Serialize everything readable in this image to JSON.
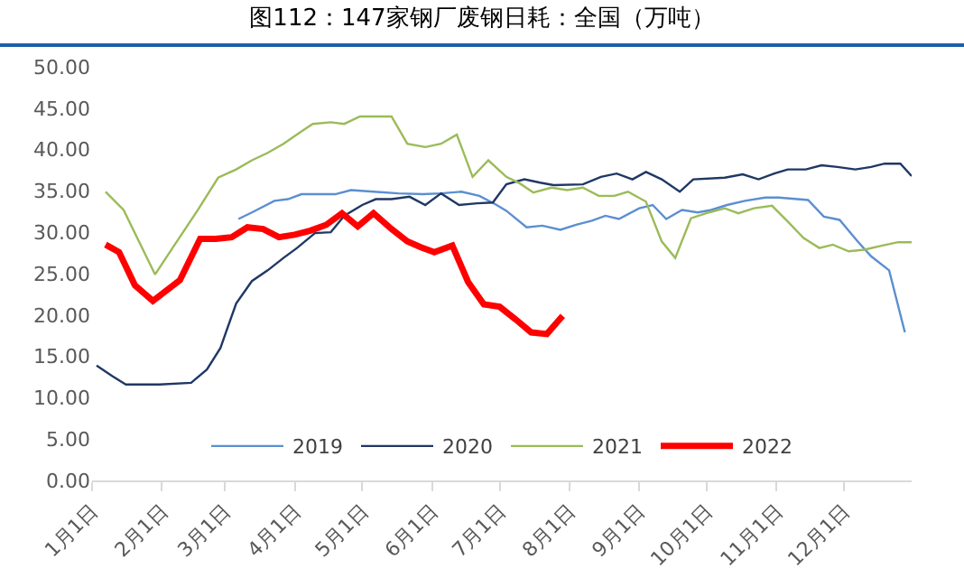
{
  "chart_data": {
    "type": "line",
    "title": "图112：147家钢厂废钢日耗：全国（万吨）",
    "xlim": [
      "--01-01",
      "--12-31"
    ],
    "xticks": [
      {
        "value": "--01-01",
        "label": "1月1日"
      },
      {
        "value": "--02-01",
        "label": "2月1日"
      },
      {
        "value": "--03-01",
        "label": "3月1日"
      },
      {
        "value": "--04-01",
        "label": "4月1日"
      },
      {
        "value": "--05-01",
        "label": "5月1日"
      },
      {
        "value": "--06-01",
        "label": "6月1日"
      },
      {
        "value": "--07-01",
        "label": "7月1日"
      },
      {
        "value": "--08-01",
        "label": "8月1日"
      },
      {
        "value": "--09-01",
        "label": "9月1日"
      },
      {
        "value": "--10-01",
        "label": "10月1日"
      },
      {
        "value": "--11-01",
        "label": "11月1日"
      },
      {
        "value": "--12-01",
        "label": "12月1日"
      }
    ],
    "ylim": [
      0,
      50
    ],
    "yticks": [
      {
        "value": 0,
        "label": "0.00"
      },
      {
        "value": 5,
        "label": "5.00"
      },
      {
        "value": 10,
        "label": "10.00"
      },
      {
        "value": 15,
        "label": "15.00"
      },
      {
        "value": 20,
        "label": "20.00"
      },
      {
        "value": 25,
        "label": "25.00"
      },
      {
        "value": 30,
        "label": "30.00"
      },
      {
        "value": 35,
        "label": "35.00"
      },
      {
        "value": 40,
        "label": "40.00"
      },
      {
        "value": 45,
        "label": "45.00"
      },
      {
        "value": 50,
        "label": "50.00"
      }
    ],
    "grid": false,
    "legend": "bottom",
    "marker": "none",
    "line_style": "solid",
    "series": [
      {
        "name": "2019",
        "color": "#5b8fd1",
        "x": [
          "--03-07",
          "--03-13",
          "--03-23",
          "--03-29",
          "--04-04",
          "--04-19",
          "--04-26",
          "--05-06",
          "--05-17",
          "--05-28",
          "--06-05",
          "--06-14",
          "--06-22",
          "--06-29",
          "--07-04",
          "--07-13",
          "--07-20",
          "--07-28",
          "--08-04",
          "--08-11",
          "--08-17",
          "--08-23",
          "--09-01",
          "--09-07",
          "--09-13",
          "--09-20",
          "--09-27",
          "--10-03",
          "--10-10",
          "--10-18",
          "--10-27",
          "--11-02",
          "--11-15",
          "--11-22",
          "--11-29",
          "--12-07",
          "--12-13",
          "--12-21",
          "--12-28"
        ],
        "values": [
          31.6,
          32.4,
          33.8,
          34.0,
          34.6,
          34.6,
          35.1,
          34.9,
          34.7,
          34.6,
          34.7,
          34.9,
          34.4,
          33.4,
          32.6,
          30.6,
          30.8,
          30.3,
          30.9,
          31.4,
          32.0,
          31.6,
          32.9,
          33.3,
          31.6,
          32.7,
          32.4,
          32.7,
          33.3,
          33.8,
          34.2,
          34.2,
          33.9,
          31.9,
          31.5,
          28.9,
          27.1,
          25.4,
          17.9
        ]
      },
      {
        "name": "2020",
        "color": "#1f3864",
        "x": [
          "--01-03",
          "--01-10",
          "--01-16",
          "--01-31",
          "--02-14",
          "--02-21",
          "--02-27",
          "--03-06",
          "--03-13",
          "--03-20",
          "--03-27",
          "--04-02",
          "--04-10",
          "--04-17",
          "--04-23",
          "--05-01",
          "--05-07",
          "--05-14",
          "--05-22",
          "--05-29",
          "--06-05",
          "--06-13",
          "--06-21",
          "--06-28",
          "--07-04",
          "--07-12",
          "--07-19",
          "--07-25",
          "--08-07",
          "--08-15",
          "--08-22",
          "--08-29",
          "--09-04",
          "--09-11",
          "--09-19",
          "--09-25",
          "--10-09",
          "--10-17",
          "--10-24",
          "--10-31",
          "--11-06",
          "--11-14",
          "--11-21",
          "--11-28",
          "--12-06",
          "--12-13",
          "--12-19",
          "--12-26",
          "--12-31"
        ],
        "values": [
          13.9,
          12.6,
          11.6,
          11.6,
          11.8,
          13.4,
          16.0,
          21.4,
          24.1,
          25.4,
          26.9,
          28.1,
          29.9,
          30.0,
          32.0,
          33.3,
          34.0,
          34.0,
          34.3,
          33.3,
          34.7,
          33.3,
          33.5,
          33.6,
          35.8,
          36.4,
          36.0,
          35.7,
          35.8,
          36.7,
          37.1,
          36.4,
          37.3,
          36.4,
          34.9,
          36.4,
          36.6,
          37.0,
          36.4,
          37.1,
          37.6,
          37.6,
          38.1,
          37.9,
          37.6,
          37.9,
          38.3,
          38.3,
          36.8
        ]
      },
      {
        "name": "2021",
        "color": "#9bbb59",
        "x": [
          "--01-07",
          "--01-15",
          "--01-22",
          "--01-29",
          "--02-06",
          "--02-17",
          "--02-26",
          "--03-06",
          "--03-13",
          "--03-20",
          "--03-27",
          "--04-04",
          "--04-09",
          "--04-17",
          "--04-23",
          "--04-30",
          "--05-07",
          "--05-14",
          "--05-21",
          "--05-29",
          "--06-05",
          "--06-12",
          "--06-19",
          "--06-26",
          "--07-04",
          "--07-10",
          "--07-16",
          "--07-24",
          "--07-31",
          "--08-07",
          "--08-14",
          "--08-21",
          "--08-27",
          "--09-04",
          "--09-11",
          "--09-17",
          "--09-24",
          "--10-02",
          "--10-09",
          "--10-15",
          "--10-22",
          "--10-30",
          "--11-06",
          "--11-13",
          "--11-20",
          "--11-26",
          "--12-03",
          "--12-10",
          "--12-18",
          "--12-25",
          "--12-31"
        ],
        "values": [
          34.9,
          32.7,
          28.8,
          24.9,
          28.2,
          32.7,
          36.6,
          37.6,
          38.7,
          39.6,
          40.7,
          42.2,
          43.1,
          43.3,
          43.1,
          44.0,
          44.0,
          44.0,
          40.7,
          40.3,
          40.7,
          41.8,
          36.7,
          38.7,
          36.7,
          35.9,
          34.8,
          35.4,
          35.1,
          35.4,
          34.4,
          34.4,
          34.9,
          33.7,
          28.9,
          26.9,
          31.7,
          32.4,
          32.9,
          32.3,
          32.9,
          33.2,
          31.3,
          29.3,
          28.1,
          28.5,
          27.7,
          27.9,
          28.4,
          28.8,
          28.8
        ]
      },
      {
        "name": "2022",
        "color": "#ff0000",
        "x": [
          "--01-07",
          "--01-13",
          "--01-20",
          "--01-28",
          "--02-09",
          "--02-18",
          "--02-25",
          "--03-04",
          "--03-11",
          "--03-18",
          "--03-25",
          "--04-01",
          "--04-08",
          "--04-15",
          "--04-22",
          "--04-29",
          "--05-06",
          "--05-14",
          "--05-21",
          "--05-27",
          "--06-02",
          "--06-10",
          "--06-17",
          "--06-24",
          "--07-01",
          "--07-08",
          "--07-15",
          "--07-22",
          "--07-29"
        ],
        "values": [
          28.5,
          27.6,
          23.6,
          21.7,
          24.2,
          29.2,
          29.2,
          29.4,
          30.6,
          30.4,
          29.4,
          29.7,
          30.2,
          30.9,
          32.3,
          30.7,
          32.3,
          30.4,
          28.9,
          28.2,
          27.6,
          28.4,
          24.0,
          21.3,
          21.0,
          19.5,
          17.9,
          17.7,
          19.9
        ]
      }
    ]
  }
}
